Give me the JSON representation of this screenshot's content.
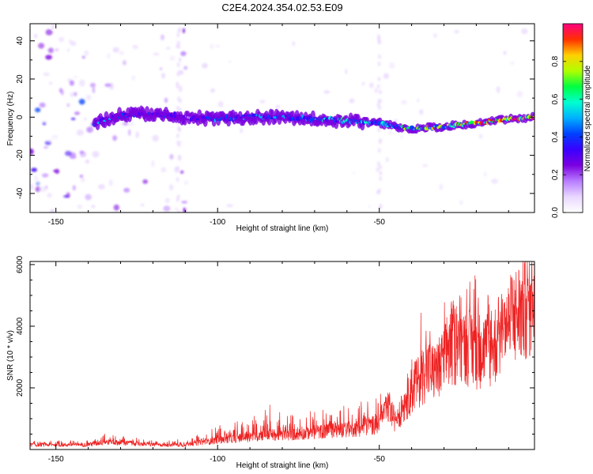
{
  "title": "C2E4.2024.354.02.53.E09",
  "colors": {
    "snr_line": "#ee2222",
    "background": "#ffffff",
    "axis": "#000000"
  },
  "colormap": [
    "#ffffff",
    "#e9d7ff",
    "#b77cff",
    "#7b00e0",
    "#3a00ff",
    "#0040ff",
    "#00b0ff",
    "#00ffd0",
    "#00ff40",
    "#b0ff00",
    "#ffd000",
    "#ff3000",
    "#ff0080"
  ],
  "chart_data": [
    {
      "type": "heatmap",
      "xlabel": "Height of straight line (km)",
      "ylabel": "Frequency (Hz)",
      "xlim": [
        -158,
        -2
      ],
      "ylim": [
        -50,
        49
      ],
      "xticks": [
        -150,
        -100,
        -50
      ],
      "yticks": [
        -40,
        -20,
        0,
        20,
        40
      ],
      "colorbar": {
        "label": "Normalized spectral amplitude",
        "range": [
          0,
          1
        ],
        "ticks": [
          "0.0",
          "0.2",
          "0.4",
          "0.6",
          "0.8"
        ]
      },
      "ridge": {
        "x": [
          -138,
          -130,
          -120,
          -110,
          -100,
          -90,
          -80,
          -70,
          -60,
          -50,
          -45,
          -40,
          -30,
          -20,
          -10,
          -2
        ],
        "freq": [
          -3,
          1,
          2,
          0,
          -1,
          0,
          0,
          -1,
          -2,
          -3,
          -5,
          -6,
          -5,
          -3,
          -1,
          0
        ],
        "amplitude": [
          0.45,
          0.4,
          0.35,
          0.3,
          0.4,
          0.4,
          0.45,
          0.5,
          0.55,
          0.5,
          0.55,
          0.65,
          0.7,
          0.8,
          0.85,
          0.95
        ]
      },
      "noise_regions": [
        {
          "x": [
            -158,
            -138
          ],
          "level": 0.25
        },
        {
          "x": [
            -138,
            -108
          ],
          "level": 0.12
        },
        {
          "x": [
            -108,
            -2
          ],
          "level": 0.03
        }
      ],
      "grid": false
    },
    {
      "type": "line",
      "xlabel": "Height of straight line (km)",
      "ylabel": "SNR (10 * v/v)",
      "xlim": [
        -158,
        -2
      ],
      "ylim": [
        0,
        6100
      ],
      "xticks": [
        -150,
        -100,
        -50
      ],
      "yticks": [
        2000,
        4000,
        6000
      ],
      "series": [
        {
          "x": [
            -158,
            -140,
            -135,
            -120,
            -110,
            -100,
            -90,
            -85,
            -80,
            -75,
            -70,
            -65,
            -60,
            -55,
            -50,
            -47,
            -45,
            -42,
            -38,
            -35,
            -32,
            -28,
            -25,
            -20,
            -15,
            -10,
            -5,
            -2
          ],
          "base": [
            150,
            150,
            250,
            150,
            150,
            300,
            400,
            500,
            450,
            500,
            550,
            600,
            650,
            700,
            850,
            1400,
            900,
            1500,
            2200,
            2600,
            2400,
            3300,
            3500,
            3200,
            3300,
            4000,
            4700,
            5000
          ],
          "peak": [
            300,
            300,
            550,
            300,
            350,
            800,
            1000,
            1600,
            1200,
            1100,
            1300,
            1300,
            1500,
            1600,
            2000,
            1700,
            1200,
            2300,
            4200,
            5400,
            3800,
            6000,
            5000,
            5800,
            4800,
            5600,
            5800,
            5900
          ]
        }
      ],
      "grid": false
    }
  ]
}
